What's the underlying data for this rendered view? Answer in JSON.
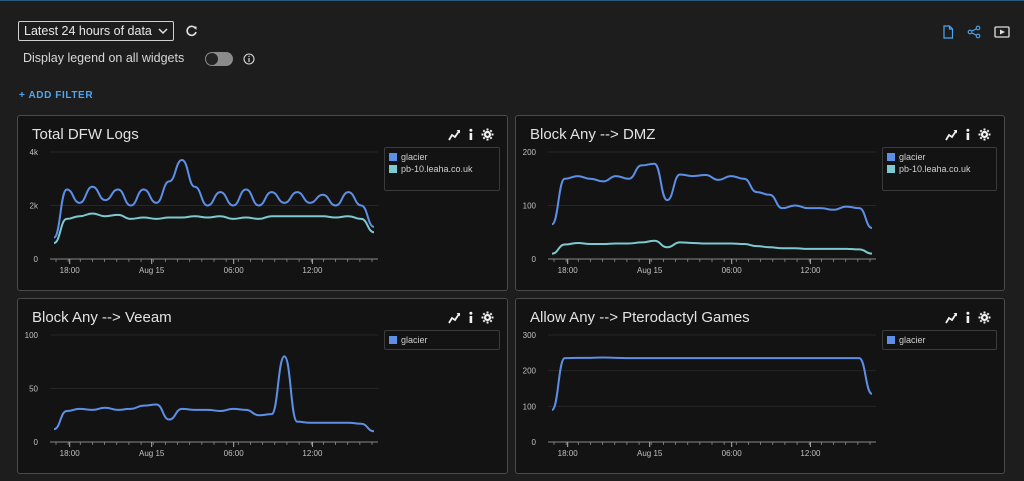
{
  "toolbar": {
    "time_range": "Latest 24 hours of data",
    "legend_toggle_label": "Display legend on all widgets",
    "legend_toggle_on": false,
    "add_filter": "+ ADD FILTER"
  },
  "colors": {
    "series1": "#5d8fe6",
    "series2": "#7ccad0",
    "accent": "#4ea6f0"
  },
  "widgets": [
    {
      "title": "Total DFW Logs",
      "chart_data": {
        "type": "line",
        "x_ticks": [
          "18:00",
          "Aug 15",
          "06:00",
          "12:00"
        ],
        "y_ticks": [
          "0",
          "2k",
          "4k"
        ],
        "ylim": [
          0,
          4000
        ],
        "x": [
          0,
          1,
          2,
          3,
          4,
          5,
          6,
          7,
          8,
          9,
          10,
          11,
          12,
          13,
          14,
          15,
          16,
          17,
          18,
          19,
          20,
          21,
          22,
          23,
          24,
          25
        ],
        "series": [
          {
            "name": "glacier",
            "values": [
              800,
              2600,
              2100,
              2700,
              2200,
              2600,
              2000,
              2600,
              2100,
              2900,
              3700,
              2700,
              2000,
              2500,
              2000,
              2600,
              2000,
              2500,
              2100,
              2500,
              2100,
              2400,
              2000,
              2500,
              2000,
              1200
            ]
          },
          {
            "name": "pb-10.leaha.co.uk",
            "values": [
              600,
              1500,
              1600,
              1700,
              1600,
              1650,
              1500,
              1550,
              1500,
              1550,
              1550,
              1600,
              1550,
              1600,
              1500,
              1550,
              1500,
              1600,
              1600,
              1600,
              1600,
              1600,
              1550,
              1600,
              1500,
              1000
            ]
          }
        ]
      }
    },
    {
      "title": "Block Any --> DMZ",
      "chart_data": {
        "type": "line",
        "x_ticks": [
          "18:00",
          "Aug 15",
          "06:00",
          "12:00"
        ],
        "y_ticks": [
          "0",
          "100",
          "200"
        ],
        "ylim": [
          0,
          200
        ],
        "x": [
          0,
          1,
          2,
          3,
          4,
          5,
          6,
          7,
          8,
          9,
          10,
          11,
          12,
          13,
          14,
          15,
          16,
          17,
          18,
          19,
          20,
          21,
          22,
          23,
          24,
          25
        ],
        "series": [
          {
            "name": "glacier",
            "values": [
              65,
              150,
              155,
              150,
              145,
              155,
              150,
              175,
              178,
              110,
              158,
              155,
              157,
              148,
              155,
              150,
              125,
              120,
              95,
              100,
              95,
              95,
              92,
              98,
              95,
              58
            ]
          },
          {
            "name": "pb-10.leaha.co.uk",
            "values": [
              10,
              27,
              30,
              28,
              28,
              29,
              29,
              31,
              34,
              22,
              31,
              30,
              29,
              29,
              29,
              28,
              24,
              22,
              20,
              20,
              19,
              19,
              19,
              19,
              18,
              10
            ]
          }
        ]
      }
    },
    {
      "title": "Block Any --> Veeam",
      "chart_data": {
        "type": "line",
        "x_ticks": [
          "18:00",
          "Aug 15",
          "06:00",
          "12:00"
        ],
        "y_ticks": [
          "0",
          "50",
          "100"
        ],
        "ylim": [
          0,
          100
        ],
        "x": [
          0,
          1,
          2,
          3,
          4,
          5,
          6,
          7,
          8,
          9,
          10,
          11,
          12,
          13,
          14,
          15,
          16,
          17,
          18,
          19,
          20,
          21,
          22,
          23,
          24,
          25
        ],
        "series": [
          {
            "name": "glacier",
            "values": [
              12,
              29,
              31,
              30,
              32,
              30,
              31,
              34,
              35,
              21,
              31,
              30,
              30,
              29,
              31,
              30,
              25,
              26,
              80,
              19,
              18,
              18,
              18,
              18,
              17,
              10
            ]
          }
        ]
      }
    },
    {
      "title": "Allow Any --> Pterodactyl Games",
      "chart_data": {
        "type": "line",
        "x_ticks": [
          "18:00",
          "Aug 15",
          "06:00",
          "12:00"
        ],
        "y_ticks": [
          "0",
          "100",
          "200",
          "300"
        ],
        "ylim": [
          0,
          300
        ],
        "x": [
          0,
          1,
          2,
          3,
          4,
          5,
          6,
          7,
          8,
          9,
          10,
          11,
          12,
          13,
          14,
          15,
          16,
          17,
          18,
          19,
          20,
          21,
          22,
          23,
          24,
          25
        ],
        "series": [
          {
            "name": "glacier",
            "values": [
              90,
              235,
              236,
              236,
              237,
              236,
              235,
              235,
              235,
              235,
              235,
              235,
              235,
              235,
              235,
              235,
              235,
              235,
              235,
              235,
              235,
              235,
              235,
              235,
              235,
              135
            ]
          }
        ]
      }
    }
  ]
}
